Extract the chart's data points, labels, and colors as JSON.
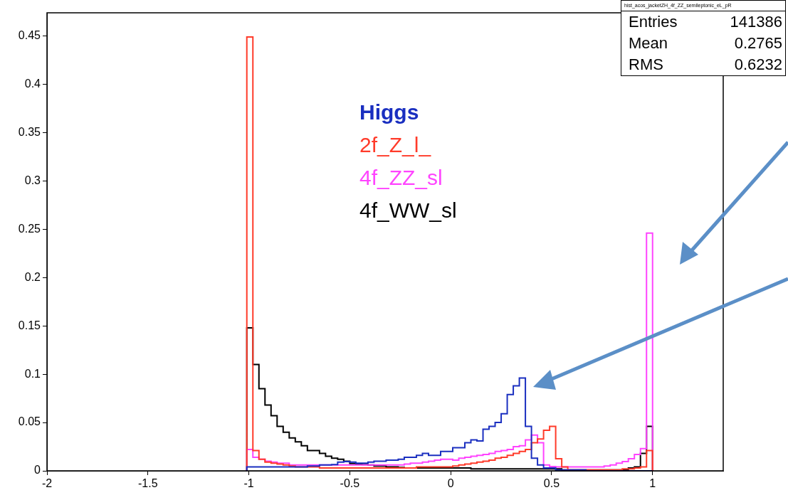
{
  "chart_data": {
    "type": "histogram",
    "bins": [
      -1.01,
      -0.98,
      -0.95,
      -0.92,
      -0.89,
      -0.86,
      -0.83,
      -0.8,
      -0.77,
      -0.74,
      -0.71,
      -0.68,
      -0.65,
      -0.62,
      -0.59,
      -0.56,
      -0.53,
      -0.5,
      -0.47,
      -0.44,
      -0.41,
      -0.38,
      -0.35,
      -0.32,
      -0.29,
      -0.26,
      -0.23,
      -0.2,
      -0.17,
      -0.14,
      -0.11,
      -0.08,
      -0.05,
      -0.02,
      0.01,
      0.04,
      0.07,
      0.1,
      0.13,
      0.16,
      0.19,
      0.22,
      0.25,
      0.28,
      0.31,
      0.34,
      0.37,
      0.4,
      0.43,
      0.46,
      0.49,
      0.52,
      0.55,
      0.58,
      0.61,
      0.64,
      0.67,
      0.7,
      0.73,
      0.76,
      0.79,
      0.82,
      0.85,
      0.88,
      0.91,
      0.94,
      0.97,
      1.0
    ],
    "series": [
      {
        "name": "Higgs",
        "color": "#1a2fc0",
        "values": [
          0.004,
          0.004,
          0.004,
          0.004,
          0.004,
          0.004,
          0.004,
          0.004,
          0.004,
          0.004,
          0.005,
          0.005,
          0.006,
          0.006,
          0.0065,
          0.009,
          0.0095,
          0.009,
          0.008,
          0.008,
          0.009,
          0.01,
          0.01,
          0.011,
          0.011,
          0.012,
          0.014,
          0.014,
          0.016,
          0.018,
          0.016,
          0.016,
          0.02,
          0.02,
          0.024,
          0.024,
          0.029,
          0.032,
          0.031,
          0.043,
          0.046,
          0.05,
          0.059,
          0.079,
          0.088,
          0.096,
          0.046,
          0.013,
          0.006,
          0.003,
          0.003,
          0.001,
          0.001,
          0.001,
          0.001,
          0.001,
          0,
          0,
          0,
          0,
          0,
          0,
          0,
          0,
          0,
          0,
          0
        ]
      },
      {
        "name": "2f_Z_l_",
        "color": "#ff3b2a",
        "values": [
          0.449,
          0.021,
          0.012,
          0.009,
          0.008,
          0.007,
          0.006,
          0.005,
          0.004,
          0.004,
          0.004,
          0.004,
          0.003,
          0.003,
          0.003,
          0.003,
          0.003,
          0.003,
          0.003,
          0.003,
          0.003,
          0.003,
          0.003,
          0.003,
          0.003,
          0.003,
          0.003,
          0.003,
          0.004,
          0.004,
          0.004,
          0.004,
          0.004,
          0.004,
          0.005,
          0.006,
          0.007,
          0.008,
          0.009,
          0.01,
          0.011,
          0.013,
          0.014,
          0.016,
          0.018,
          0.02,
          0.022,
          0.029,
          0.033,
          0.042,
          0.046,
          0.0125,
          0.004,
          0.001,
          0.001,
          0.001,
          0.001,
          0.001,
          0.001,
          0.001,
          0.001,
          0.001,
          0.002,
          0.002,
          0.003,
          0.004,
          0.021
        ]
      },
      {
        "name": "4f_ZZ_sl",
        "color": "#ff44ff",
        "values": [
          0.022,
          0.014,
          0.012,
          0.01,
          0.009,
          0.008,
          0.008,
          0.006,
          0.006,
          0.006,
          0.006,
          0.006,
          0.006,
          0.006,
          0.006,
          0.006,
          0.006,
          0.006,
          0.006,
          0.006,
          0.006,
          0.006,
          0.006,
          0.006,
          0.006,
          0.006,
          0.007,
          0.008,
          0.008,
          0.009,
          0.01,
          0.011,
          0.012,
          0.012,
          0.011,
          0.013,
          0.014,
          0.015,
          0.016,
          0.017,
          0.018,
          0.02,
          0.021,
          0.022,
          0.025,
          0.026,
          0.032,
          0.037,
          0.029,
          0.006,
          0.0045,
          0.004,
          0.004,
          0.004,
          0.004,
          0.004,
          0.004,
          0.004,
          0.004,
          0.005,
          0.006,
          0.008,
          0.0095,
          0.0125,
          0.017,
          0.023,
          0.246
        ]
      },
      {
        "name": "4f_WW_sl",
        "color": "#000000",
        "values": [
          0.148,
          0.11,
          0.085,
          0.068,
          0.057,
          0.046,
          0.04,
          0.034,
          0.03,
          0.026,
          0.021,
          0.021,
          0.018,
          0.015,
          0.013,
          0.012,
          0.01,
          0.0075,
          0.007,
          0.0065,
          0.006,
          0.005,
          0.005,
          0.004,
          0.004,
          0.0035,
          0.003,
          0.003,
          0.003,
          0.003,
          0.003,
          0.003,
          0.003,
          0.003,
          0.003,
          0.003,
          0.003,
          0.002,
          0.002,
          0.002,
          0.002,
          0.002,
          0.002,
          0.002,
          0.002,
          0.002,
          0.002,
          0.002,
          0.002,
          0.002,
          0.002,
          0.002,
          0.001,
          0.001,
          0.001,
          0.001,
          0.001,
          0.001,
          0.001,
          0.001,
          0.001,
          0.001,
          0.001,
          0.003,
          0.004,
          0.018,
          0.046
        ]
      }
    ],
    "xlim": [
      -2,
      1.35
    ],
    "xticks": [
      -2,
      -1.5,
      -1,
      -0.5,
      0,
      0.5,
      1
    ],
    "ylim": [
      0,
      0.474
    ],
    "yticks": [
      0,
      0.05,
      0.1,
      0.15,
      0.2,
      0.25,
      0.3,
      0.35,
      0.4,
      0.45
    ],
    "grid": false,
    "legend": "top",
    "annotations": [
      "hist_acos_jacketZH_4f_ZZ_semileptonic_eL_pR",
      "Entries 141386",
      "Mean 0.2765",
      "RMS 0.6232"
    ]
  }
}
